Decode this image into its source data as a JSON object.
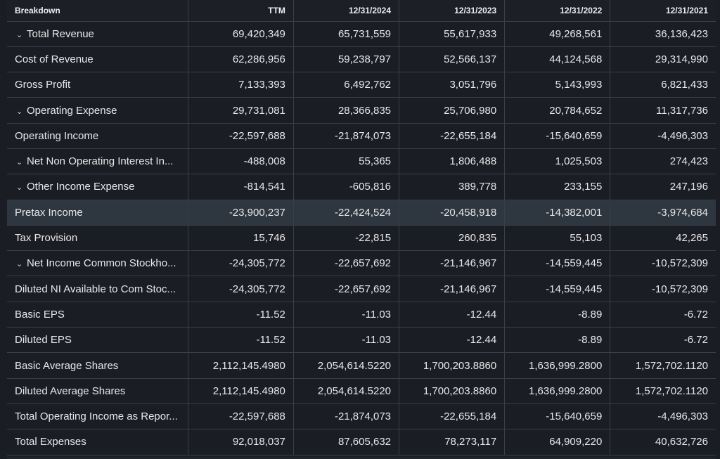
{
  "table": {
    "header": {
      "breakdown": "Breakdown",
      "ttm": "TTM",
      "y2024": "12/31/2024",
      "y2023": "12/31/2023",
      "y2022": "12/31/2022",
      "y2021": "12/31/2021"
    },
    "expand_icon": "chevron-down-icon",
    "highlight_color": "#2e363f",
    "rows": [
      {
        "label": "Total Revenue",
        "expandable": true,
        "ttm": "69,420,349",
        "y2024": "65,731,559",
        "y2023": "55,617,933",
        "y2022": "49,268,561",
        "y2021": "36,136,423"
      },
      {
        "label": "Cost of Revenue",
        "expandable": false,
        "ttm": "62,286,956",
        "y2024": "59,238,797",
        "y2023": "52,566,137",
        "y2022": "44,124,568",
        "y2021": "29,314,990"
      },
      {
        "label": "Gross Profit",
        "expandable": false,
        "ttm": "7,133,393",
        "y2024": "6,492,762",
        "y2023": "3,051,796",
        "y2022": "5,143,993",
        "y2021": "6,821,433"
      },
      {
        "label": "Operating Expense",
        "expandable": true,
        "ttm": "29,731,081",
        "y2024": "28,366,835",
        "y2023": "25,706,980",
        "y2022": "20,784,652",
        "y2021": "11,317,736"
      },
      {
        "label": "Operating Income",
        "expandable": false,
        "ttm": "-22,597,688",
        "y2024": "-21,874,073",
        "y2023": "-22,655,184",
        "y2022": "-15,640,659",
        "y2021": "-4,496,303"
      },
      {
        "label": "Net Non Operating Interest In...",
        "expandable": true,
        "ttm": "-488,008",
        "y2024": "55,365",
        "y2023": "1,806,488",
        "y2022": "1,025,503",
        "y2021": "274,423"
      },
      {
        "label": "Other Income Expense",
        "expandable": true,
        "ttm": "-814,541",
        "y2024": "-605,816",
        "y2023": "389,778",
        "y2022": "233,155",
        "y2021": "247,196"
      },
      {
        "label": "Pretax Income",
        "expandable": false,
        "highlighted": true,
        "ttm": "-23,900,237",
        "y2024": "-22,424,524",
        "y2023": "-20,458,918",
        "y2022": "-14,382,001",
        "y2021": "-3,974,684"
      },
      {
        "label": "Tax Provision",
        "expandable": false,
        "ttm": "15,746",
        "y2024": "-22,815",
        "y2023": "260,835",
        "y2022": "55,103",
        "y2021": "42,265"
      },
      {
        "label": "Net Income Common Stockho...",
        "expandable": true,
        "ttm": "-24,305,772",
        "y2024": "-22,657,692",
        "y2023": "-21,146,967",
        "y2022": "-14,559,445",
        "y2021": "-10,572,309"
      },
      {
        "label": "Diluted NI Available to Com Stoc...",
        "expandable": false,
        "ttm": "-24,305,772",
        "y2024": "-22,657,692",
        "y2023": "-21,146,967",
        "y2022": "-14,559,445",
        "y2021": "-10,572,309"
      },
      {
        "label": "Basic EPS",
        "expandable": false,
        "ttm": "-11.52",
        "y2024": "-11.03",
        "y2023": "-12.44",
        "y2022": "-8.89",
        "y2021": "-6.72"
      },
      {
        "label": "Diluted EPS",
        "expandable": false,
        "ttm": "-11.52",
        "y2024": "-11.03",
        "y2023": "-12.44",
        "y2022": "-8.89",
        "y2021": "-6.72"
      },
      {
        "label": "Basic Average Shares",
        "expandable": false,
        "ttm": "2,112,145.4980",
        "y2024": "2,054,614.5220",
        "y2023": "1,700,203.8860",
        "y2022": "1,636,999.2800",
        "y2021": "1,572,702.1120"
      },
      {
        "label": "Diluted Average Shares",
        "expandable": false,
        "ttm": "2,112,145.4980",
        "y2024": "2,054,614.5220",
        "y2023": "1,700,203.8860",
        "y2022": "1,636,999.2800",
        "y2021": "1,572,702.1120"
      },
      {
        "label": "Total Operating Income as Repor...",
        "expandable": false,
        "ttm": "-22,597,688",
        "y2024": "-21,874,073",
        "y2023": "-22,655,184",
        "y2022": "-15,640,659",
        "y2021": "-4,496,303"
      },
      {
        "label": "Total Expenses",
        "expandable": false,
        "ttm": "92,018,037",
        "y2024": "87,605,632",
        "y2023": "78,273,117",
        "y2022": "64,909,220",
        "y2021": "40,632,726"
      }
    ]
  }
}
